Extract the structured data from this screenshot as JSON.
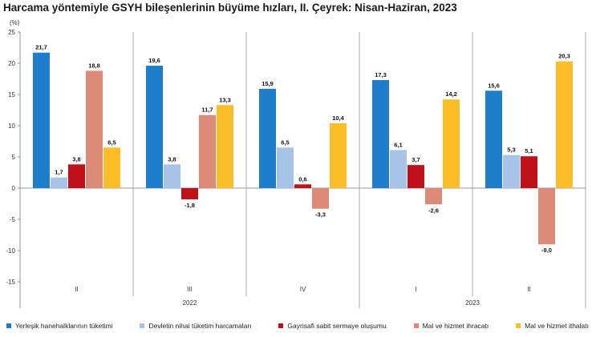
{
  "chart_data": {
    "type": "bar",
    "title": "Harcama yöntemiyle GSYH bileşenlerinin büyüme hızları, II. Çeyrek: Nisan-Haziran, 2023",
    "unit_label": "(%)",
    "ylim": [
      -15,
      25
    ],
    "yticks": [
      25,
      20,
      15,
      10,
      5,
      0,
      -5,
      -10,
      -15
    ],
    "grid": false,
    "legend_position": "bottom",
    "categories": [
      "II",
      "III",
      "IV",
      "I",
      "II"
    ],
    "year_labels": [
      {
        "label": "2022",
        "span": [
          0,
          2
        ]
      },
      {
        "label": "2023",
        "span": [
          3,
          4
        ]
      }
    ],
    "series": [
      {
        "name": "Yerleşik hanehalklarının tüketimi",
        "color": "#1f7ecb",
        "values": [
          21.7,
          19.6,
          15.9,
          17.3,
          15.6
        ],
        "labels": [
          "21,7",
          "19,6",
          "15,9",
          "17,3",
          "15,6"
        ]
      },
      {
        "name": "Devletin nihai tüketim harcamaları",
        "color": "#a7c4e8",
        "values": [
          1.7,
          3.8,
          6.5,
          6.1,
          5.3
        ],
        "labels": [
          "1,7",
          "3,8",
          "6,5",
          "6,1",
          "5,3"
        ]
      },
      {
        "name": "Gayrisafi sabit sermaye oluşumu",
        "color": "#c0101a",
        "values": [
          3.8,
          -1.8,
          0.6,
          3.7,
          5.1
        ],
        "labels": [
          "3,8",
          "-1,8",
          "0,6",
          "3,7",
          "5,1"
        ]
      },
      {
        "name": "Mal ve hizmet ihracatı",
        "color": "#de8a78",
        "values": [
          18.8,
          11.7,
          -3.3,
          -2.6,
          -9.0
        ],
        "labels": [
          "18,8",
          "11,7",
          "-3,3",
          "-2,6",
          "-9,0"
        ]
      },
      {
        "name": "Mal ve hizmet ithalatı",
        "color": "#fbbd28",
        "values": [
          6.5,
          13.3,
          10.4,
          14.2,
          20.3
        ],
        "labels": [
          "6,5",
          "13,3",
          "10,4",
          "14,2",
          "20,3"
        ]
      }
    ]
  }
}
